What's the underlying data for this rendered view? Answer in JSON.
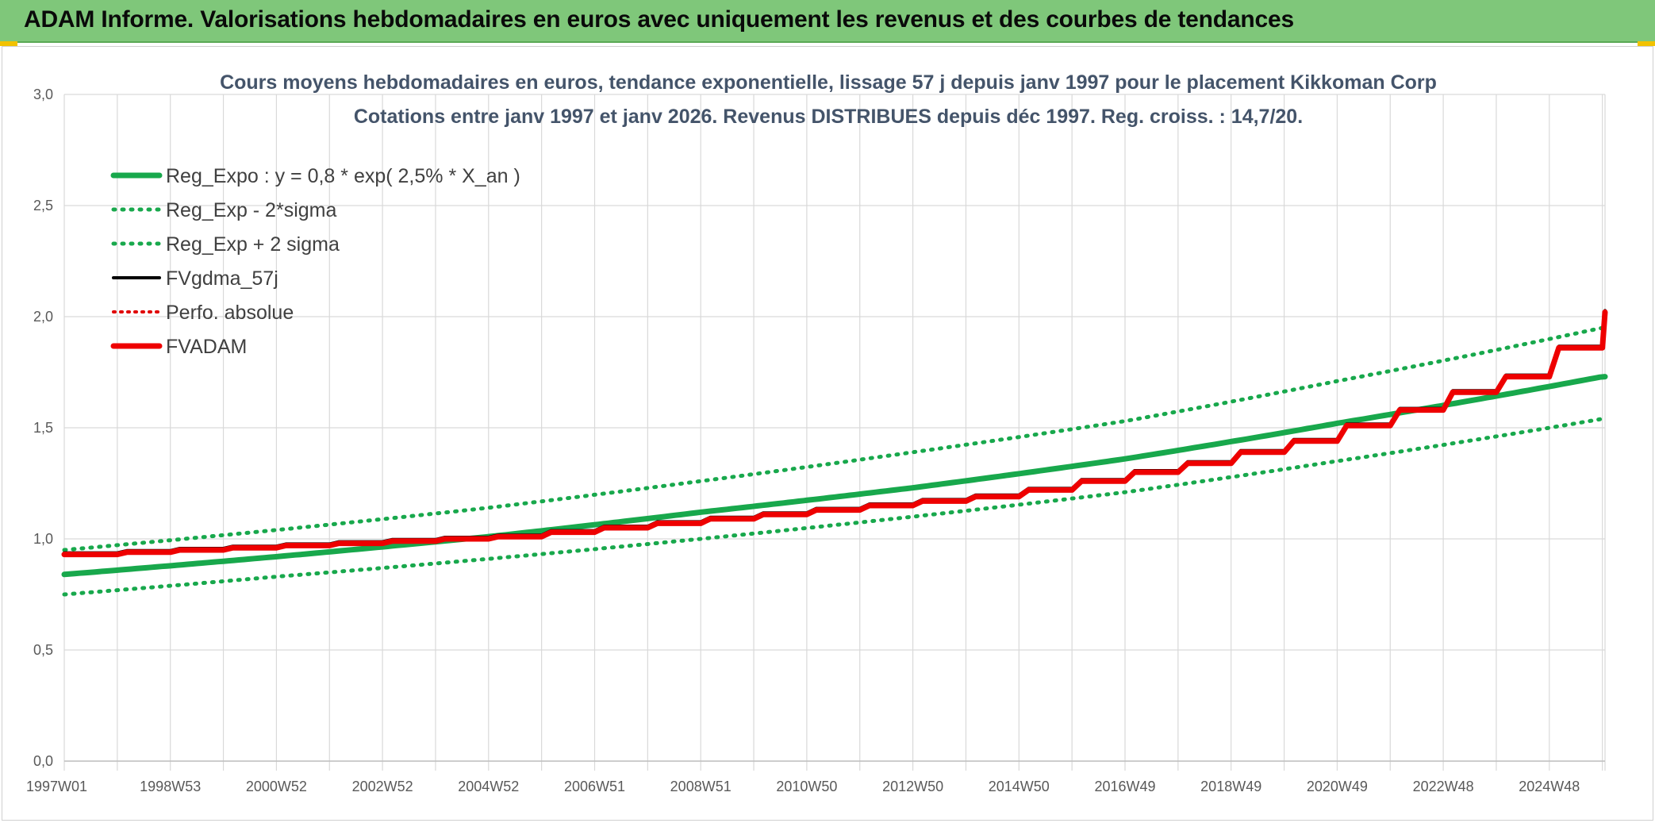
{
  "header": {
    "title": "ADAM Informe. Valorisations hebdomadaires en euros avec uniquement les revenus et des courbes de tendances"
  },
  "colors": {
    "banner": "#7fc77a",
    "regression": "#18a84c",
    "band": "#18a84c",
    "fvgdma": "#000000",
    "perfo": "#e00000",
    "fvadam": "#ee0000"
  },
  "chart_data": {
    "type": "line",
    "title": "Cours moyens hebdomadaires en euros, tendance exponentielle, lissage 57 j depuis janv 1997 pour le placement Kikkoman Corp",
    "subtitle": "Cotations entre janv 1997 et janv 2026. Revenus DISTRIBUES depuis déc 1997. Reg. croiss. : 14,7/20.",
    "xlabel": "",
    "ylabel": "",
    "ylim": [
      0,
      3
    ],
    "y_ticks": [
      "0,0",
      "0,5",
      "1,0",
      "1,5",
      "2,0",
      "2,5",
      "3,0"
    ],
    "x_range": [
      1997.0,
      2026.05
    ],
    "x_ticks": [
      {
        "label": "1997W01",
        "x": 1997.0
      },
      {
        "label": "1998W53",
        "x": 1999.0
      },
      {
        "label": "2000W52",
        "x": 2001.0
      },
      {
        "label": "2002W52",
        "x": 2003.0
      },
      {
        "label": "2004W52",
        "x": 2005.0
      },
      {
        "label": "2006W51",
        "x": 2007.0
      },
      {
        "label": "2008W51",
        "x": 2009.0
      },
      {
        "label": "2010W50",
        "x": 2011.0
      },
      {
        "label": "2012W50",
        "x": 2013.0
      },
      {
        "label": "2014W50",
        "x": 2015.0
      },
      {
        "label": "2016W49",
        "x": 2017.0
      },
      {
        "label": "2018W49",
        "x": 2019.0
      },
      {
        "label": "2020W49",
        "x": 2021.0
      },
      {
        "label": "2022W48",
        "x": 2023.0
      },
      {
        "label": "2024W48",
        "x": 2025.0
      }
    ],
    "grid": true,
    "legend_position": "top-left",
    "series": [
      {
        "name": "Reg_Expo : y = 0,8 * exp( 2,5% *  X_an )",
        "style": "solid-thick",
        "x": [
          1997,
          2001,
          2005,
          2009,
          2013,
          2017,
          2021,
          2026
        ],
        "values": [
          0.84,
          0.92,
          1.01,
          1.12,
          1.23,
          1.36,
          1.52,
          1.73
        ]
      },
      {
        "name": "Reg_Exp - 2*sigma",
        "style": "dotted",
        "x": [
          1997,
          2001,
          2005,
          2009,
          2013,
          2017,
          2021,
          2026
        ],
        "values": [
          0.75,
          0.83,
          0.91,
          1.0,
          1.1,
          1.21,
          1.35,
          1.54
        ]
      },
      {
        "name": "Reg_Exp + 2 sigma",
        "style": "dotted",
        "x": [
          1997,
          2001,
          2005,
          2009,
          2013,
          2017,
          2021,
          2026
        ],
        "values": [
          0.95,
          1.04,
          1.14,
          1.26,
          1.39,
          1.53,
          1.71,
          1.95
        ]
      },
      {
        "name": "FVgdma_57j",
        "style": "solid",
        "x": [
          1997,
          1998,
          1999,
          2000,
          2001,
          2002,
          2003,
          2004,
          2005,
          2006,
          2007,
          2008,
          2009,
          2010,
          2011,
          2012,
          2013,
          2014,
          2015,
          2016,
          2017,
          2018,
          2019,
          2020,
          2021,
          2022,
          2023,
          2024,
          2025,
          2026
        ],
        "values": [
          0.93,
          0.94,
          0.95,
          0.96,
          0.97,
          0.98,
          0.99,
          1.0,
          1.01,
          1.03,
          1.05,
          1.07,
          1.09,
          1.11,
          1.13,
          1.15,
          1.17,
          1.19,
          1.22,
          1.26,
          1.3,
          1.34,
          1.39,
          1.44,
          1.51,
          1.58,
          1.66,
          1.73,
          1.86,
          2.02
        ]
      },
      {
        "name": "Perfo. absolue",
        "style": "dotted-red",
        "x": [
          1997,
          1998,
          1999,
          2000,
          2001,
          2002,
          2003,
          2004,
          2005,
          2006,
          2007,
          2008,
          2009,
          2010,
          2011,
          2012,
          2013,
          2014,
          2015,
          2016,
          2017,
          2018,
          2019,
          2020,
          2021,
          2022,
          2023,
          2024,
          2025,
          2026
        ],
        "values": [
          0.93,
          0.94,
          0.95,
          0.96,
          0.97,
          0.98,
          0.99,
          1.0,
          1.01,
          1.03,
          1.05,
          1.07,
          1.09,
          1.11,
          1.13,
          1.15,
          1.17,
          1.19,
          1.22,
          1.26,
          1.3,
          1.34,
          1.39,
          1.44,
          1.51,
          1.58,
          1.66,
          1.73,
          1.86,
          2.02
        ]
      },
      {
        "name": "FVADAM",
        "style": "step-thick",
        "x": [
          1997,
          1998,
          1999,
          2000,
          2001,
          2002,
          2003,
          2004,
          2005,
          2006,
          2007,
          2008,
          2009,
          2010,
          2011,
          2012,
          2013,
          2014,
          2015,
          2016,
          2017,
          2018,
          2019,
          2020,
          2021,
          2022,
          2023,
          2024,
          2025,
          2026
        ],
        "values": [
          0.93,
          0.94,
          0.95,
          0.96,
          0.97,
          0.98,
          0.99,
          1.0,
          1.01,
          1.03,
          1.05,
          1.07,
          1.09,
          1.11,
          1.13,
          1.15,
          1.17,
          1.19,
          1.22,
          1.26,
          1.3,
          1.34,
          1.39,
          1.44,
          1.51,
          1.58,
          1.66,
          1.73,
          1.86,
          2.02
        ]
      }
    ]
  }
}
